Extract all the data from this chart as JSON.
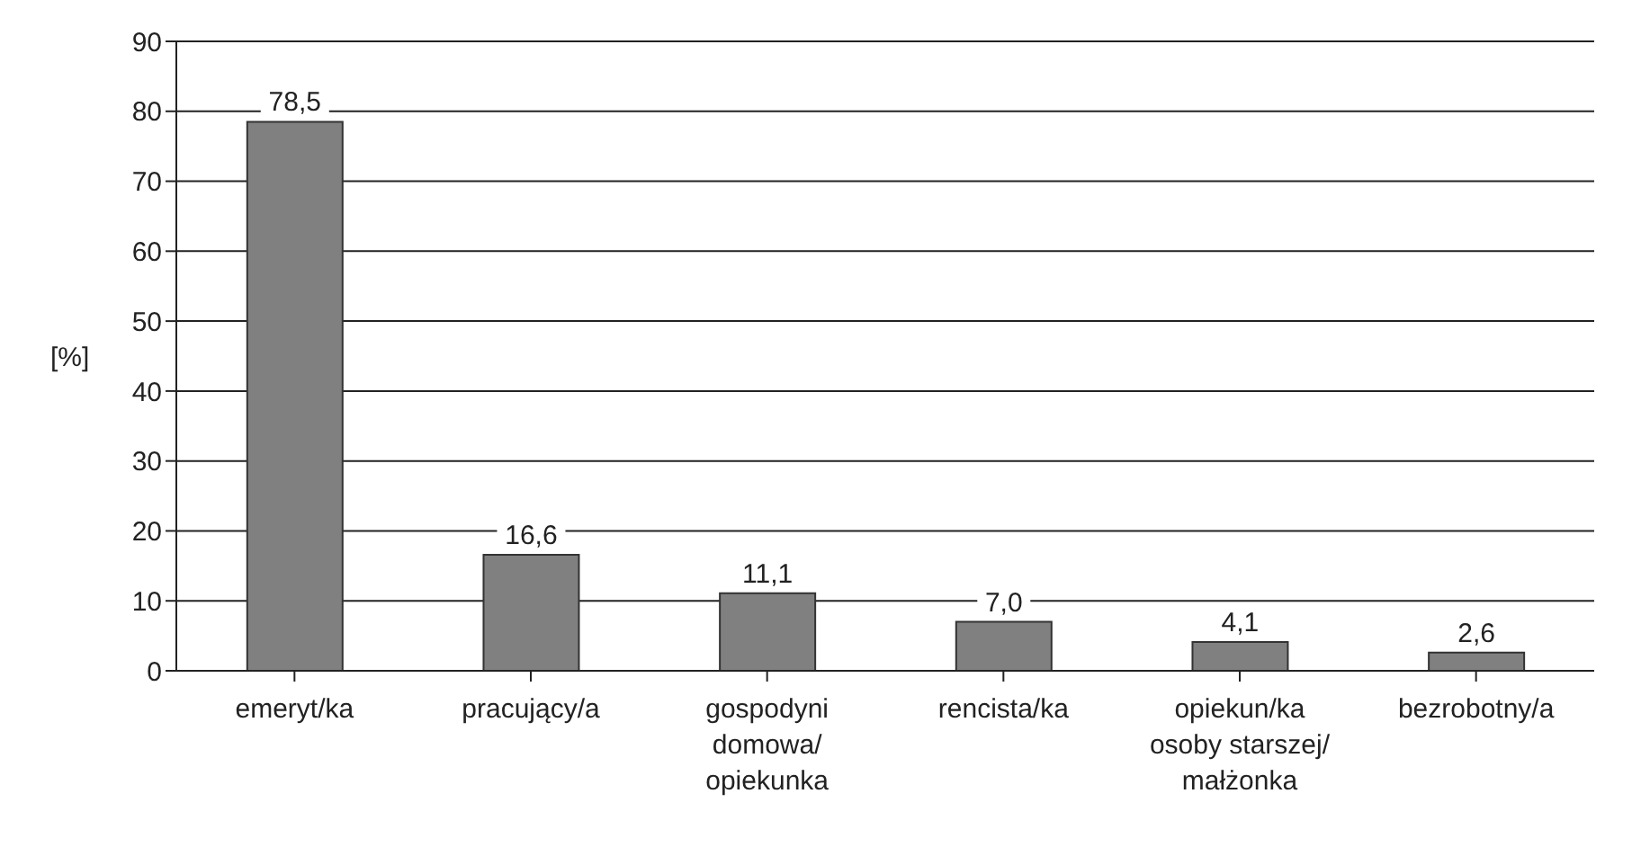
{
  "chart_data": {
    "type": "bar",
    "ylabel": "[%]",
    "categories": [
      "emeryt/ka",
      "pracujący/a",
      "gospodyni domowa/ opiekunka",
      "rencista/ka",
      "opiekun/ka osoby starszej/ małżonka",
      "bezrobotny/a"
    ],
    "values": [
      78.5,
      16.6,
      11.1,
      7.0,
      4.1,
      2.6
    ],
    "value_labels": [
      "78,5",
      "16,6",
      "11,1",
      "7,0",
      "4,1",
      "2,6"
    ],
    "color": "#808080",
    "ylim": [
      0,
      90
    ],
    "yticks": [
      0,
      10,
      20,
      30,
      40,
      50,
      60,
      70,
      80,
      90
    ],
    "grid": "y"
  }
}
